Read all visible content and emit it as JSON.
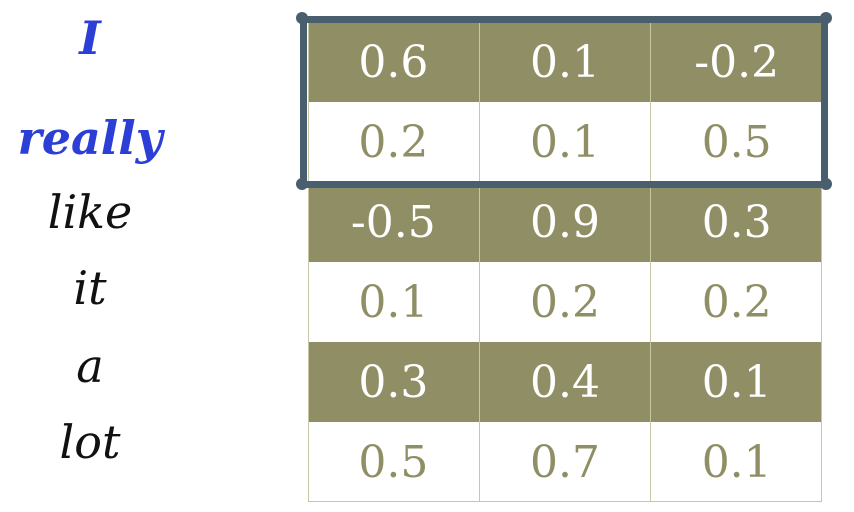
{
  "words": [
    "I",
    "really",
    "like",
    "it",
    "a",
    "lot"
  ],
  "highlighted_words": [
    0,
    1
  ],
  "matrix": [
    [
      "0.6",
      "0.1",
      "-0.2"
    ],
    [
      "0.2",
      "0.1",
      "0.5"
    ],
    [
      "-0.5",
      "0.9",
      "0.3"
    ],
    [
      "0.1",
      "0.2",
      "0.2"
    ],
    [
      "0.3",
      "0.4",
      "0.1"
    ],
    [
      "0.5",
      "0.7",
      "0.1"
    ]
  ],
  "colors": {
    "highlight_word": "#2b3fd6",
    "word": "#111111",
    "shaded_row": "#8f8e64",
    "window_border": "#4a5f6d"
  }
}
